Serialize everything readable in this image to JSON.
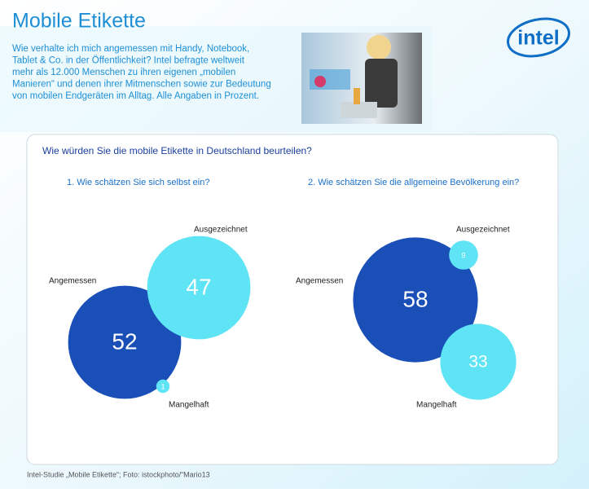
{
  "title": "Mobile Etikette",
  "intro": [
    "Wie verhalte ich mich angemessen mit Handy, Notebook,",
    "Tablet & Co. in der Öffentlichkeit? Intel befragte weltweit",
    "mehr als 12.000 Menschen zu ihren eigenen „mobilen",
    "Manieren“ und denen ihrer Mitmenschen sowie zur Bedeutung",
    "von mobilen Endgeräten im Alltag. Alle Angaben in Prozent."
  ],
  "logo": "intel",
  "question": "Wie würden Sie die mobile Etikette in Deutschland beurteilen?",
  "source": "Intel-Studie „Mobile Etikette“; Foto: istockphoto/“Mario13",
  "chart_data": [
    {
      "type": "bubble",
      "title": "1. Wie schätzen Sie sich selbst ein?",
      "categories": [
        "Angemessen",
        "Ausgezeichnet",
        "Mangelhaft"
      ],
      "values": [
        52,
        47,
        1
      ],
      "colors": [
        "#1a4fb8",
        "#5ee4f4",
        "#5ee4f4"
      ]
    },
    {
      "type": "bubble",
      "title": "2. Wie schätzen Sie die allgemeine Bevölkerung ein?",
      "categories": [
        "Angemessen",
        "Ausgezeichnet",
        "Mangelhaft"
      ],
      "values": [
        58,
        9,
        33
      ],
      "colors": [
        "#1a4fb8",
        "#5ee4f4",
        "#5ee4f4"
      ]
    }
  ]
}
